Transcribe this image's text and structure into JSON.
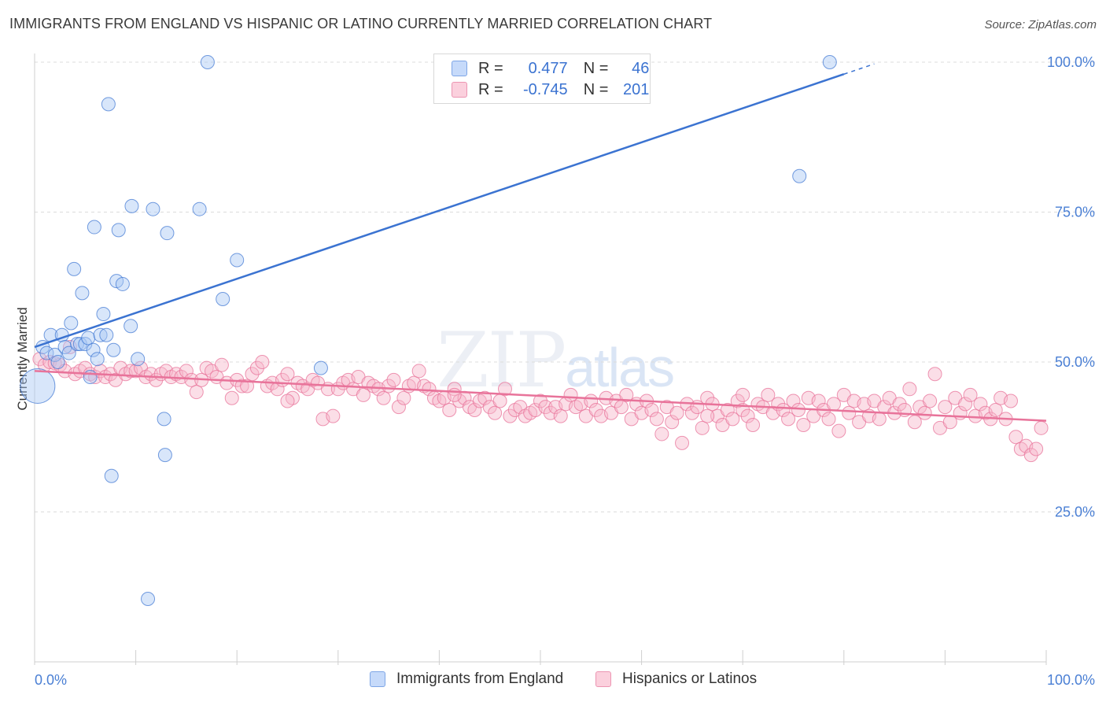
{
  "title": "IMMIGRANTS FROM ENGLAND VS HISPANIC OR LATINO CURRENTLY MARRIED CORRELATION CHART",
  "source": "Source: ZipAtlas.com",
  "watermark": {
    "zip": "ZIP",
    "atlas": "atlas"
  },
  "legend": {
    "rows": [
      {
        "r_label": "R =",
        "r_value": "0.477",
        "n_label": "N =",
        "n_value": "46",
        "color": "#a9c8f5"
      },
      {
        "r_label": "R =",
        "r_value": "-0.745",
        "n_label": "N =",
        "n_value": "201",
        "color": "#f7b6c9"
      }
    ]
  },
  "bottom_legend": [
    {
      "label": "Immigrants from England",
      "color": "#a9c8f5"
    },
    {
      "label": "Hispanics or Latinos",
      "color": "#f7b6c9"
    }
  ],
  "colors": {
    "blue": "#3b73d1",
    "pink": "#e8739a",
    "tick_text": "#4a7fd4"
  },
  "chart_data": {
    "type": "scatter",
    "title": "IMMIGRANTS FROM ENGLAND VS HISPANIC OR LATINO CURRENTLY MARRIED CORRELATION CHART",
    "xlabel": "",
    "ylabel": "Currently Married",
    "xlim": [
      0,
      100
    ],
    "ylim": [
      0,
      100
    ],
    "x_tick_labels": [
      "0.0%",
      "100.0%"
    ],
    "y_ticks": [
      25,
      50,
      75,
      100
    ],
    "y_tick_labels": [
      "25.0%",
      "50.0%",
      "75.0%",
      "100.0%"
    ],
    "grid": "horizontal dashed",
    "series": [
      {
        "name": "Immigrants from England",
        "color": "#a9c8f5",
        "stroke": "#3b73d1",
        "trend": {
          "x": [
            0,
            80
          ],
          "y": [
            52.5,
            98.0
          ],
          "dashed_extension_to": 83
        },
        "points": [
          [
            0.3,
            46.0
          ],
          [
            0.8,
            52.5
          ],
          [
            1.2,
            51.5
          ],
          [
            1.6,
            54.5
          ],
          [
            2.0,
            51.2
          ],
          [
            2.3,
            50.0
          ],
          [
            2.7,
            54.5
          ],
          [
            3.0,
            52.5
          ],
          [
            3.4,
            51.5
          ],
          [
            3.6,
            56.5
          ],
          [
            3.9,
            65.5
          ],
          [
            4.2,
            53.0
          ],
          [
            4.5,
            53.0
          ],
          [
            4.7,
            61.5
          ],
          [
            5.0,
            53.0
          ],
          [
            5.3,
            54.0
          ],
          [
            5.5,
            47.5
          ],
          [
            5.8,
            52.0
          ],
          [
            5.9,
            72.5
          ],
          [
            6.2,
            50.5
          ],
          [
            6.5,
            54.5
          ],
          [
            6.8,
            58.0
          ],
          [
            7.1,
            54.5
          ],
          [
            7.3,
            93.0
          ],
          [
            7.6,
            31.0
          ],
          [
            7.8,
            52.0
          ],
          [
            8.1,
            63.5
          ],
          [
            8.3,
            72.0
          ],
          [
            8.7,
            63.0
          ],
          [
            9.5,
            56.0
          ],
          [
            9.6,
            76.0
          ],
          [
            10.2,
            50.5
          ],
          [
            11.2,
            10.5
          ],
          [
            11.7,
            75.5
          ],
          [
            12.8,
            40.5
          ],
          [
            12.9,
            34.5
          ],
          [
            13.1,
            71.5
          ],
          [
            16.3,
            75.5
          ],
          [
            17.1,
            100.0
          ],
          [
            18.6,
            60.5
          ],
          [
            20.0,
            67.0
          ],
          [
            28.3,
            49.0
          ],
          [
            56.1,
            100.0
          ],
          [
            75.6,
            81.0
          ],
          [
            78.6,
            100.0
          ]
        ]
      },
      {
        "name": "Hispanics or Latinos",
        "color": "#f7b6c9",
        "stroke": "#e8739a",
        "trend": {
          "x": [
            0,
            100
          ],
          "y": [
            48.5,
            40.2
          ]
        },
        "points": [
          [
            0.5,
            50.5
          ],
          [
            1.0,
            49.5
          ],
          [
            1.5,
            50.0
          ],
          [
            2.0,
            49.8
          ],
          [
            2.5,
            49.5
          ],
          [
            3.0,
            48.5
          ],
          [
            3.5,
            52.5
          ],
          [
            4.0,
            48.0
          ],
          [
            4.5,
            48.5
          ],
          [
            5.0,
            49.0
          ],
          [
            5.5,
            48.0
          ],
          [
            6.0,
            47.5
          ],
          [
            6.5,
            48.5
          ],
          [
            7.0,
            47.5
          ],
          [
            7.5,
            48.0
          ],
          [
            8.0,
            47.0
          ],
          [
            8.5,
            49.0
          ],
          [
            9.0,
            48.0
          ],
          [
            9.5,
            48.5
          ],
          [
            10.0,
            48.5
          ],
          [
            10.5,
            49.0
          ],
          [
            11.0,
            47.5
          ],
          [
            11.5,
            48.0
          ],
          [
            12.0,
            47.0
          ],
          [
            12.5,
            48.0
          ],
          [
            13.0,
            48.5
          ],
          [
            13.5,
            47.5
          ],
          [
            14.0,
            48.0
          ],
          [
            14.5,
            47.5
          ],
          [
            15.0,
            48.5
          ],
          [
            15.5,
            47.0
          ],
          [
            16.0,
            45.0
          ],
          [
            16.5,
            47.0
          ],
          [
            17.0,
            49.0
          ],
          [
            17.5,
            48.5
          ],
          [
            18.0,
            47.5
          ],
          [
            18.5,
            49.5
          ],
          [
            19.0,
            46.5
          ],
          [
            19.5,
            44.0
          ],
          [
            20.0,
            47.0
          ],
          [
            20.5,
            46.0
          ],
          [
            21.0,
            46.0
          ],
          [
            21.5,
            48.0
          ],
          [
            22.0,
            49.0
          ],
          [
            22.5,
            50.0
          ],
          [
            23.0,
            46.0
          ],
          [
            23.5,
            46.5
          ],
          [
            24.0,
            45.5
          ],
          [
            24.5,
            47.0
          ],
          [
            25.0,
            48.0
          ],
          [
            25.5,
            44.0
          ],
          [
            26.0,
            46.5
          ],
          [
            26.5,
            46.0
          ],
          [
            27.0,
            45.5
          ],
          [
            27.5,
            47.0
          ],
          [
            28.0,
            46.5
          ],
          [
            28.5,
            40.5
          ],
          [
            29.0,
            45.5
          ],
          [
            29.5,
            41.0
          ],
          [
            30.0,
            45.5
          ],
          [
            30.5,
            46.5
          ],
          [
            31.0,
            47.0
          ],
          [
            31.5,
            45.5
          ],
          [
            32.0,
            47.5
          ],
          [
            32.5,
            44.5
          ],
          [
            33.0,
            46.5
          ],
          [
            33.5,
            46.0
          ],
          [
            34.0,
            45.5
          ],
          [
            34.5,
            44.0
          ],
          [
            35.0,
            46.0
          ],
          [
            35.5,
            47.0
          ],
          [
            36.0,
            42.5
          ],
          [
            36.5,
            44.0
          ],
          [
            37.0,
            46.0
          ],
          [
            37.5,
            46.5
          ],
          [
            38.0,
            48.5
          ],
          [
            38.5,
            46.0
          ],
          [
            39.0,
            45.5
          ],
          [
            39.5,
            44.0
          ],
          [
            40.0,
            43.5
          ],
          [
            40.5,
            44.0
          ],
          [
            41.0,
            42.0
          ],
          [
            41.5,
            45.5
          ],
          [
            42.0,
            43.5
          ],
          [
            42.5,
            44.0
          ],
          [
            43.0,
            42.5
          ],
          [
            43.5,
            42.0
          ],
          [
            44.0,
            43.5
          ],
          [
            44.5,
            44.0
          ],
          [
            45.0,
            42.5
          ],
          [
            45.5,
            41.5
          ],
          [
            46.0,
            43.5
          ],
          [
            46.5,
            45.5
          ],
          [
            47.0,
            41.0
          ],
          [
            47.5,
            42.0
          ],
          [
            48.0,
            42.5
          ],
          [
            48.5,
            41.0
          ],
          [
            49.0,
            41.5
          ],
          [
            49.5,
            42.0
          ],
          [
            50.0,
            43.5
          ],
          [
            50.5,
            42.5
          ],
          [
            51.0,
            41.5
          ],
          [
            51.5,
            42.5
          ],
          [
            52.0,
            41.0
          ],
          [
            52.5,
            43.0
          ],
          [
            53.0,
            44.5
          ],
          [
            53.5,
            42.5
          ],
          [
            54.0,
            43.0
          ],
          [
            54.5,
            41.0
          ],
          [
            55.0,
            43.5
          ],
          [
            55.5,
            42.0
          ],
          [
            56.0,
            41.0
          ],
          [
            56.5,
            44.0
          ],
          [
            57.0,
            41.5
          ],
          [
            57.5,
            43.5
          ],
          [
            58.0,
            42.5
          ],
          [
            58.5,
            44.5
          ],
          [
            59.0,
            40.5
          ],
          [
            59.5,
            43.0
          ],
          [
            60.0,
            41.5
          ],
          [
            60.5,
            43.5
          ],
          [
            61.0,
            42.0
          ],
          [
            61.5,
            40.5
          ],
          [
            62.0,
            38.0
          ],
          [
            62.5,
            42.5
          ],
          [
            63.0,
            40.0
          ],
          [
            63.5,
            41.5
          ],
          [
            64.0,
            36.5
          ],
          [
            64.5,
            43.0
          ],
          [
            65.0,
            41.5
          ],
          [
            65.5,
            42.5
          ],
          [
            66.0,
            39.0
          ],
          [
            66.5,
            44.0
          ],
          [
            67.0,
            43.0
          ],
          [
            67.5,
            41.0
          ],
          [
            68.0,
            39.5
          ],
          [
            68.5,
            42.0
          ],
          [
            69.0,
            40.5
          ],
          [
            69.5,
            43.5
          ],
          [
            70.0,
            42.0
          ],
          [
            70.5,
            41.0
          ],
          [
            71.0,
            39.5
          ],
          [
            71.5,
            43.0
          ],
          [
            72.0,
            42.5
          ],
          [
            72.5,
            44.5
          ],
          [
            73.0,
            41.5
          ],
          [
            73.5,
            43.0
          ],
          [
            74.0,
            42.0
          ],
          [
            74.5,
            40.5
          ],
          [
            75.0,
            43.5
          ],
          [
            75.5,
            42.0
          ],
          [
            76.0,
            39.5
          ],
          [
            76.5,
            44.0
          ],
          [
            77.0,
            41.0
          ],
          [
            77.5,
            43.5
          ],
          [
            78.0,
            42.0
          ],
          [
            78.5,
            40.5
          ],
          [
            79.0,
            43.0
          ],
          [
            79.5,
            38.5
          ],
          [
            80.0,
            44.5
          ],
          [
            80.5,
            41.5
          ],
          [
            81.0,
            43.5
          ],
          [
            81.5,
            40.0
          ],
          [
            82.0,
            43.0
          ],
          [
            82.5,
            41.0
          ],
          [
            83.0,
            43.5
          ],
          [
            83.5,
            40.5
          ],
          [
            84.0,
            42.5
          ],
          [
            84.5,
            44.0
          ],
          [
            85.0,
            41.5
          ],
          [
            85.5,
            43.0
          ],
          [
            86.0,
            42.0
          ],
          [
            86.5,
            45.5
          ],
          [
            87.0,
            40.0
          ],
          [
            87.5,
            42.5
          ],
          [
            88.0,
            41.5
          ],
          [
            88.5,
            43.5
          ],
          [
            89.0,
            48.0
          ],
          [
            89.5,
            39.0
          ],
          [
            90.0,
            42.5
          ],
          [
            90.5,
            40.0
          ],
          [
            91.0,
            44.0
          ],
          [
            91.5,
            41.5
          ],
          [
            92.0,
            43.0
          ],
          [
            92.5,
            44.5
          ],
          [
            93.0,
            41.0
          ],
          [
            93.5,
            43.0
          ],
          [
            94.0,
            41.5
          ],
          [
            94.5,
            40.5
          ],
          [
            95.0,
            42.0
          ],
          [
            95.5,
            44.0
          ],
          [
            96.0,
            40.5
          ],
          [
            96.5,
            43.5
          ],
          [
            97.0,
            37.5
          ],
          [
            97.5,
            35.5
          ],
          [
            98.0,
            36.0
          ],
          [
            98.5,
            34.5
          ],
          [
            99.0,
            35.5
          ],
          [
            99.5,
            39.0
          ],
          [
            25.0,
            43.5
          ],
          [
            41.5,
            44.5
          ],
          [
            66.5,
            41.0
          ],
          [
            70.0,
            44.5
          ]
        ]
      }
    ]
  }
}
